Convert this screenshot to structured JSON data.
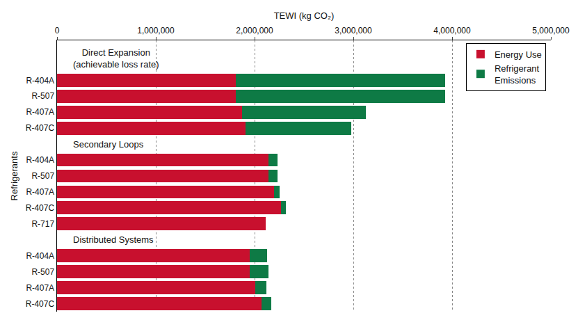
{
  "chart_data": {
    "type": "bar",
    "orientation": "horizontal",
    "stacked": true,
    "x_label": "TEWI (kg CO₂)",
    "y_label": "Refrigerants",
    "categories": [
      null,
      null,
      "R-404A",
      "R-507",
      "R-407A",
      "R-407C",
      null,
      "R-404A",
      "R-507",
      "R-407A",
      "R-407C",
      "R-717",
      null,
      "R-404A",
      "R-507",
      "R-407A",
      "R-407C"
    ],
    "series": [
      {
        "name": "Energy Use",
        "color": "#c8102e",
        "values": [
          null,
          null,
          1810000,
          1810000,
          1870000,
          1910000,
          null,
          2140000,
          2140000,
          2200000,
          2270000,
          2110000,
          null,
          1950000,
          1950000,
          2010000,
          2070000
        ]
      },
      {
        "name": "Refrigerant Emissions",
        "color": "#0e7a45",
        "values": [
          null,
          null,
          2120000,
          2120000,
          1260000,
          1070000,
          null,
          90000,
          90000,
          50000,
          50000,
          0,
          null,
          180000,
          190000,
          110000,
          100000
        ]
      }
    ],
    "annotations": [
      {
        "text": "Direct Expansion (achievable loss rate)",
        "at": 1
      },
      {
        "text": "Secondary Loops",
        "at": 6
      },
      {
        "text": "Distributed Systems",
        "at": 12
      }
    ],
    "xlim": [
      0,
      5000000
    ],
    "xticks": [
      0,
      {
        "value": 1000000,
        "label": "1,000,000"
      },
      {
        "value": 2000000,
        "label": "2,000,000"
      },
      {
        "value": 3000000,
        "label": "3,000,000"
      },
      {
        "value": 4000000,
        "label": "4,000,000"
      },
      {
        "value": 5000000,
        "label": "5,000,000"
      }
    ],
    "grid": true,
    "legend": "upper right"
  }
}
